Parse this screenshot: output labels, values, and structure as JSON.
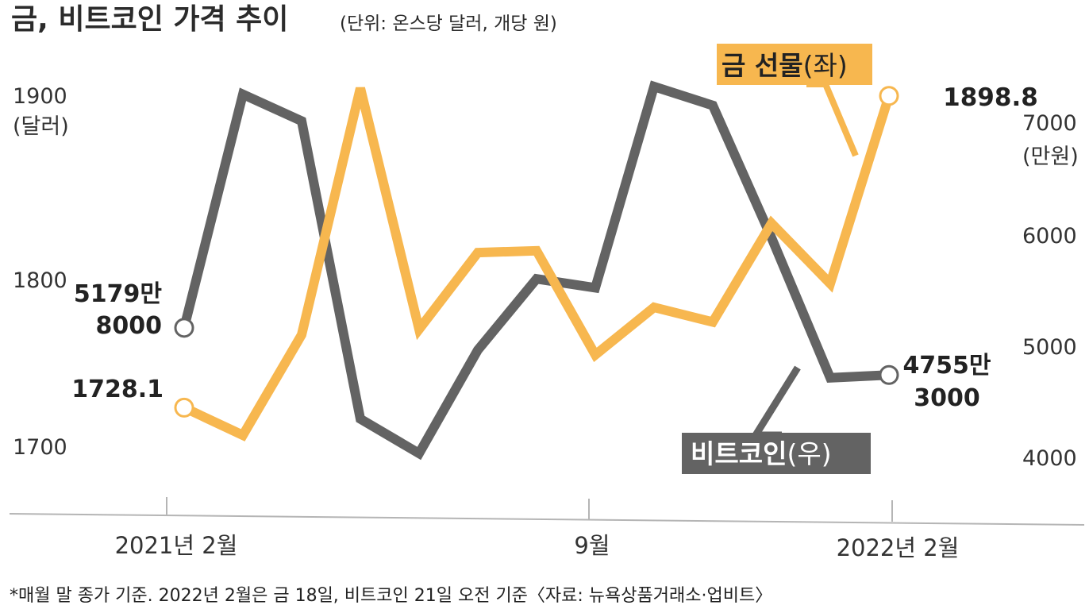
{
  "chart_data": {
    "type": "line",
    "title": "금, 비트코인 가격 추이",
    "subtitle": "(단위: 온스당 달러, 개당 원)",
    "x_ticks": [
      "2021년 2월",
      "9월",
      "2022년 2월"
    ],
    "left_axis": {
      "ticks": [
        "1900",
        "1800",
        "1700"
      ],
      "unit": "(달러)",
      "ylim": [
        1700,
        1900
      ]
    },
    "right_axis": {
      "ticks": [
        "7000",
        "6000",
        "5000",
        "4000"
      ],
      "unit": "(만원)",
      "ylim": [
        4000,
        7000
      ]
    },
    "x_months": [
      "2021-02",
      "2021-03",
      "2021-04",
      "2021-05",
      "2021-06",
      "2021-07",
      "2021-08",
      "2021-09",
      "2021-10",
      "2021-11",
      "2021-12",
      "2022-01",
      "2022-02"
    ],
    "series": [
      {
        "name": "금 선물",
        "label_main": "금 선물",
        "label_paren": "(좌)",
        "axis": "left",
        "color": "#F7B74F",
        "values": [
          1728.1,
          1713,
          1768,
          1903,
          1771,
          1813,
          1814,
          1757,
          1783,
          1775,
          1829,
          1796,
          1898.8
        ],
        "start_label": "1728.1",
        "end_label": "1898.8"
      },
      {
        "name": "비트코인",
        "label_main": "비트코인",
        "label_paren": "(우)",
        "axis": "right",
        "color": "#636363",
        "values": [
          5179.8,
          7280,
          7040,
          4360,
          4050,
          4980,
          5620,
          5540,
          7350,
          7180,
          5990,
          4730,
          4755.3
        ],
        "start_label": [
          "5179만",
          "8000"
        ],
        "end_label": [
          "4755만",
          "3000"
        ]
      }
    ],
    "grid": false,
    "legend": "inline"
  },
  "footnote": "*매월 말 종가 기준. 2022년 2월은 금 18일, 비트코인 21일 오전 기준〈자료: 뉴욕상품거래소·업비트〉"
}
